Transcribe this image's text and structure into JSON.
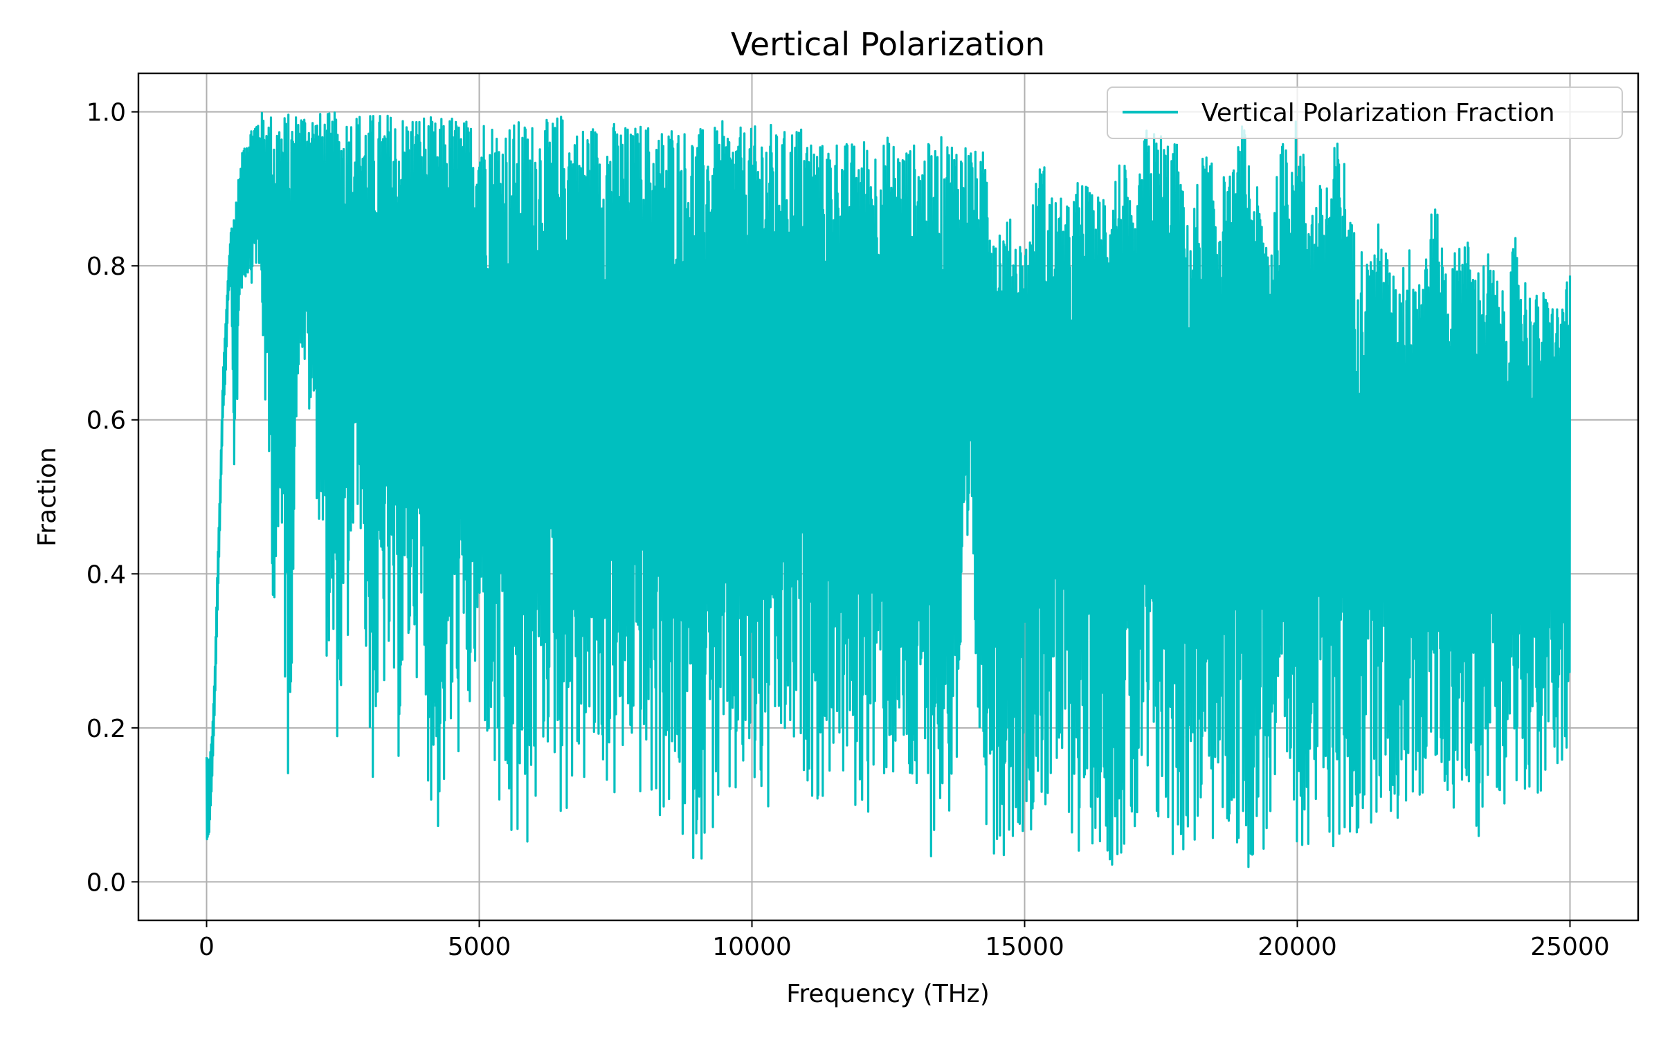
{
  "chart_data": {
    "type": "line",
    "title": "Vertical Polarization",
    "xlabel": "Frequency (THz)",
    "ylabel": "Fraction",
    "xlim": [
      -1250,
      26250
    ],
    "ylim": [
      -0.05,
      1.05
    ],
    "x_ticks": [
      0,
      5000,
      10000,
      15000,
      20000,
      25000
    ],
    "x_tick_labels": [
      "0",
      "5000",
      "10000",
      "15000",
      "20000",
      "25000"
    ],
    "y_ticks": [
      0.0,
      0.2,
      0.4,
      0.6,
      0.8,
      1.0
    ],
    "y_tick_labels": [
      "0.0",
      "0.2",
      "0.4",
      "0.6",
      "0.8",
      "1.0"
    ],
    "grid": true,
    "legend_position": "top-right",
    "series": [
      {
        "name": "Vertical Polarization Fraction",
        "color": "#00bfbf",
        "x": [
          0,
          50,
          100,
          150,
          200,
          250,
          300,
          350,
          400,
          450,
          500,
          600,
          700,
          800,
          900,
          1000,
          1200,
          1400,
          1500,
          1700,
          2000,
          2300,
          2500,
          2800,
          3000,
          3300,
          3500,
          3800,
          4000,
          4200,
          4500,
          4800,
          5000,
          5300,
          5500,
          5800,
          6000,
          6300,
          6500,
          6800,
          7000,
          7300,
          7500,
          7800,
          8000,
          8300,
          8500,
          8800,
          9000,
          9300,
          9500,
          9800,
          10000,
          10300,
          10500,
          10800,
          11000,
          11300,
          11500,
          11800,
          12000,
          12300,
          12500,
          12800,
          13000,
          13300,
          13500,
          13800,
          14000,
          14200,
          14300,
          14500,
          14800,
          15000,
          15300,
          15500,
          15800,
          16000,
          16300,
          16500,
          16800,
          17000,
          17200,
          17500,
          17800,
          18000,
          18300,
          18500,
          18800,
          19000,
          19300,
          19500,
          19800,
          20000,
          20300,
          20500,
          20800,
          21000,
          21300,
          21500,
          21800,
          22000,
          22300,
          22500,
          22800,
          23000,
          23300,
          23500,
          23800,
          24000,
          24300,
          24500,
          24800,
          25000
        ],
        "y_upper": [
          0.18,
          0.17,
          0.2,
          0.28,
          0.42,
          0.53,
          0.67,
          0.74,
          0.8,
          0.86,
          0.89,
          0.92,
          0.97,
          0.98,
          0.99,
          1.0,
          1.0,
          1.0,
          1.0,
          1.0,
          1.0,
          1.0,
          1.0,
          1.0,
          1.0,
          1.0,
          1.0,
          1.0,
          1.0,
          0.99,
          1.0,
          0.99,
          1.0,
          0.99,
          0.99,
          0.99,
          0.99,
          0.99,
          1.0,
          0.98,
          0.99,
          0.98,
          0.99,
          0.98,
          0.99,
          0.98,
          0.99,
          0.98,
          0.98,
          0.98,
          0.99,
          0.98,
          0.98,
          0.99,
          0.97,
          0.99,
          0.98,
          0.96,
          0.97,
          0.96,
          0.97,
          0.96,
          0.97,
          0.96,
          0.96,
          0.96,
          0.97,
          0.97,
          0.96,
          0.94,
          0.97,
          0.87,
          0.86,
          0.83,
          0.95,
          0.9,
          0.88,
          0.92,
          0.89,
          0.92,
          0.95,
          0.85,
          0.98,
          0.98,
          0.96,
          0.85,
          0.96,
          0.92,
          0.92,
          0.99,
          0.89,
          0.86,
          1.0,
          0.99,
          0.89,
          0.92,
          0.98,
          0.86,
          0.81,
          0.86,
          0.78,
          0.83,
          0.81,
          0.89,
          0.79,
          0.86,
          0.8,
          0.82,
          0.76,
          0.84,
          0.76,
          0.77,
          0.75,
          0.79
        ],
        "y_lower": [
          0.0,
          0.02,
          0.1,
          0.2,
          0.32,
          0.45,
          0.58,
          0.62,
          0.75,
          0.75,
          0.45,
          0.72,
          0.78,
          0.77,
          0.8,
          0.74,
          0.37,
          0.32,
          0.09,
          0.7,
          0.52,
          0.17,
          0.19,
          0.5,
          0.09,
          0.25,
          0.14,
          0.3,
          0.17,
          0.03,
          0.14,
          0.17,
          0.24,
          0.06,
          0.0,
          0.01,
          0.05,
          0.18,
          0.07,
          0.1,
          0.11,
          0.12,
          0.08,
          0.14,
          0.08,
          0.07,
          0.06,
          0.02,
          0.02,
          0.05,
          0.05,
          0.08,
          0.09,
          0.05,
          0.14,
          0.12,
          0.13,
          0.07,
          0.16,
          0.07,
          0.07,
          0.1,
          0.12,
          0.09,
          0.06,
          0.03,
          0.05,
          0.1,
          0.37,
          0.09,
          0.07,
          0.02,
          0.05,
          0.06,
          0.08,
          0.08,
          0.07,
          0.02,
          0.05,
          0.02,
          0.02,
          0.01,
          0.03,
          0.03,
          0.02,
          0.03,
          0.04,
          0.03,
          0.04,
          0.01,
          0.02,
          0.04,
          0.0,
          0.04,
          0.05,
          0.04,
          0.02,
          0.02,
          0.07,
          0.09,
          0.06,
          0.08,
          0.1,
          0.12,
          0.09,
          0.1,
          0.03,
          0.13,
          0.1,
          0.12,
          0.12,
          0.08,
          0.16,
          0.07
        ]
      }
    ]
  }
}
